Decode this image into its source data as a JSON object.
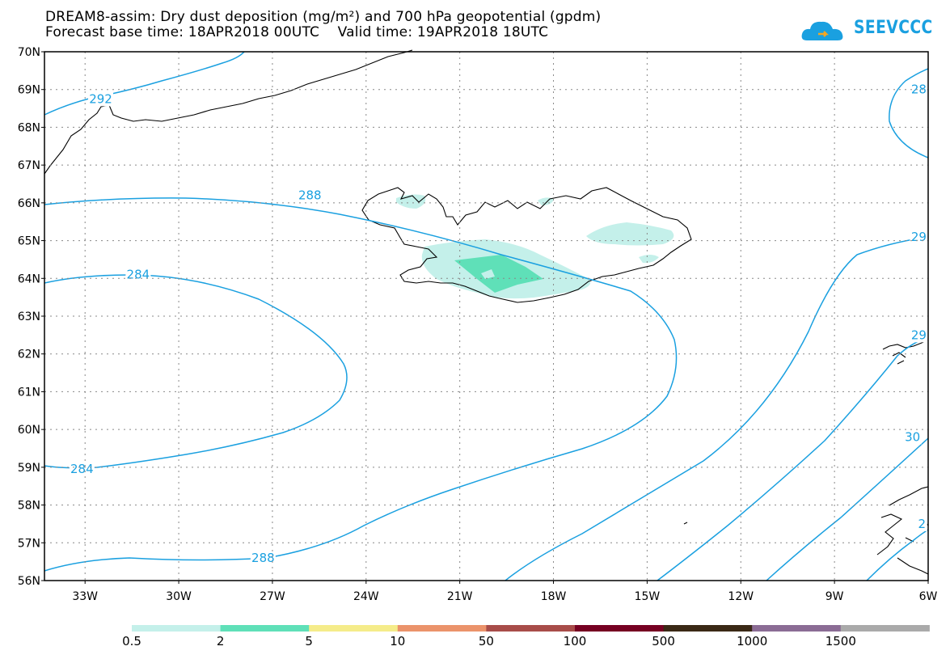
{
  "title": {
    "line1": "DREAM8-assim: Dry dust deposition (mg/m²) and 700 hPa geopotential (gpdm)",
    "forecast_base": "Forecast base time: 18APR2018 00UTC",
    "valid_time": "Valid time: 19APR2018 18UTC"
  },
  "logo": {
    "text": "SEEVCCC",
    "icon": "cloud-arrow-icon"
  },
  "axes": {
    "lat_labels": [
      "70N",
      "69N",
      "68N",
      "67N",
      "66N",
      "65N",
      "64N",
      "63N",
      "62N",
      "61N",
      "60N",
      "59N",
      "58N",
      "57N",
      "56N"
    ],
    "lat_values": [
      70,
      69,
      68,
      67,
      66,
      65,
      64,
      63,
      62,
      61,
      60,
      59,
      58,
      57,
      56
    ],
    "lon_labels": [
      "33W",
      "30W",
      "27W",
      "24W",
      "21W",
      "18W",
      "15W",
      "12W",
      "9W",
      "6W"
    ],
    "lon_values": [
      -33,
      -30,
      -27,
      -24,
      -21,
      -18,
      -15,
      -12,
      -9,
      -6
    ],
    "lon_range": [
      -34.3,
      -6
    ],
    "lat_range": [
      56,
      70
    ]
  },
  "contours": {
    "color": "#1aa0e0",
    "labels": [
      {
        "text": "292",
        "lon": -32.5,
        "lat": 68.75
      },
      {
        "text": "288",
        "lon": -25.8,
        "lat": 66.2
      },
      {
        "text": "284",
        "lon": -31.3,
        "lat": 64.1
      },
      {
        "text": "284",
        "lon": -33.1,
        "lat": 58.95
      },
      {
        "text": "288",
        "lon": -27.3,
        "lat": 56.6
      },
      {
        "text": "28",
        "lon": -6.3,
        "lat": 69.0
      },
      {
        "text": "29",
        "lon": -6.3,
        "lat": 65.1
      },
      {
        "text": "29",
        "lon": -6.3,
        "lat": 62.5
      },
      {
        "text": "30",
        "lon": -6.5,
        "lat": 59.8
      },
      {
        "text": "2",
        "lon": -6.2,
        "lat": 57.5
      }
    ]
  },
  "legend": {
    "colors": [
      "#c4f0ea",
      "#5fe0b8",
      "#f5ec8a",
      "#eb936b",
      "#a84c49",
      "#760022",
      "#3a2815",
      "#8b6c95",
      "#aaaaaa"
    ],
    "labels": [
      "0.5",
      "2",
      "5",
      "10",
      "50",
      "100",
      "500",
      "1000",
      "1500"
    ]
  }
}
